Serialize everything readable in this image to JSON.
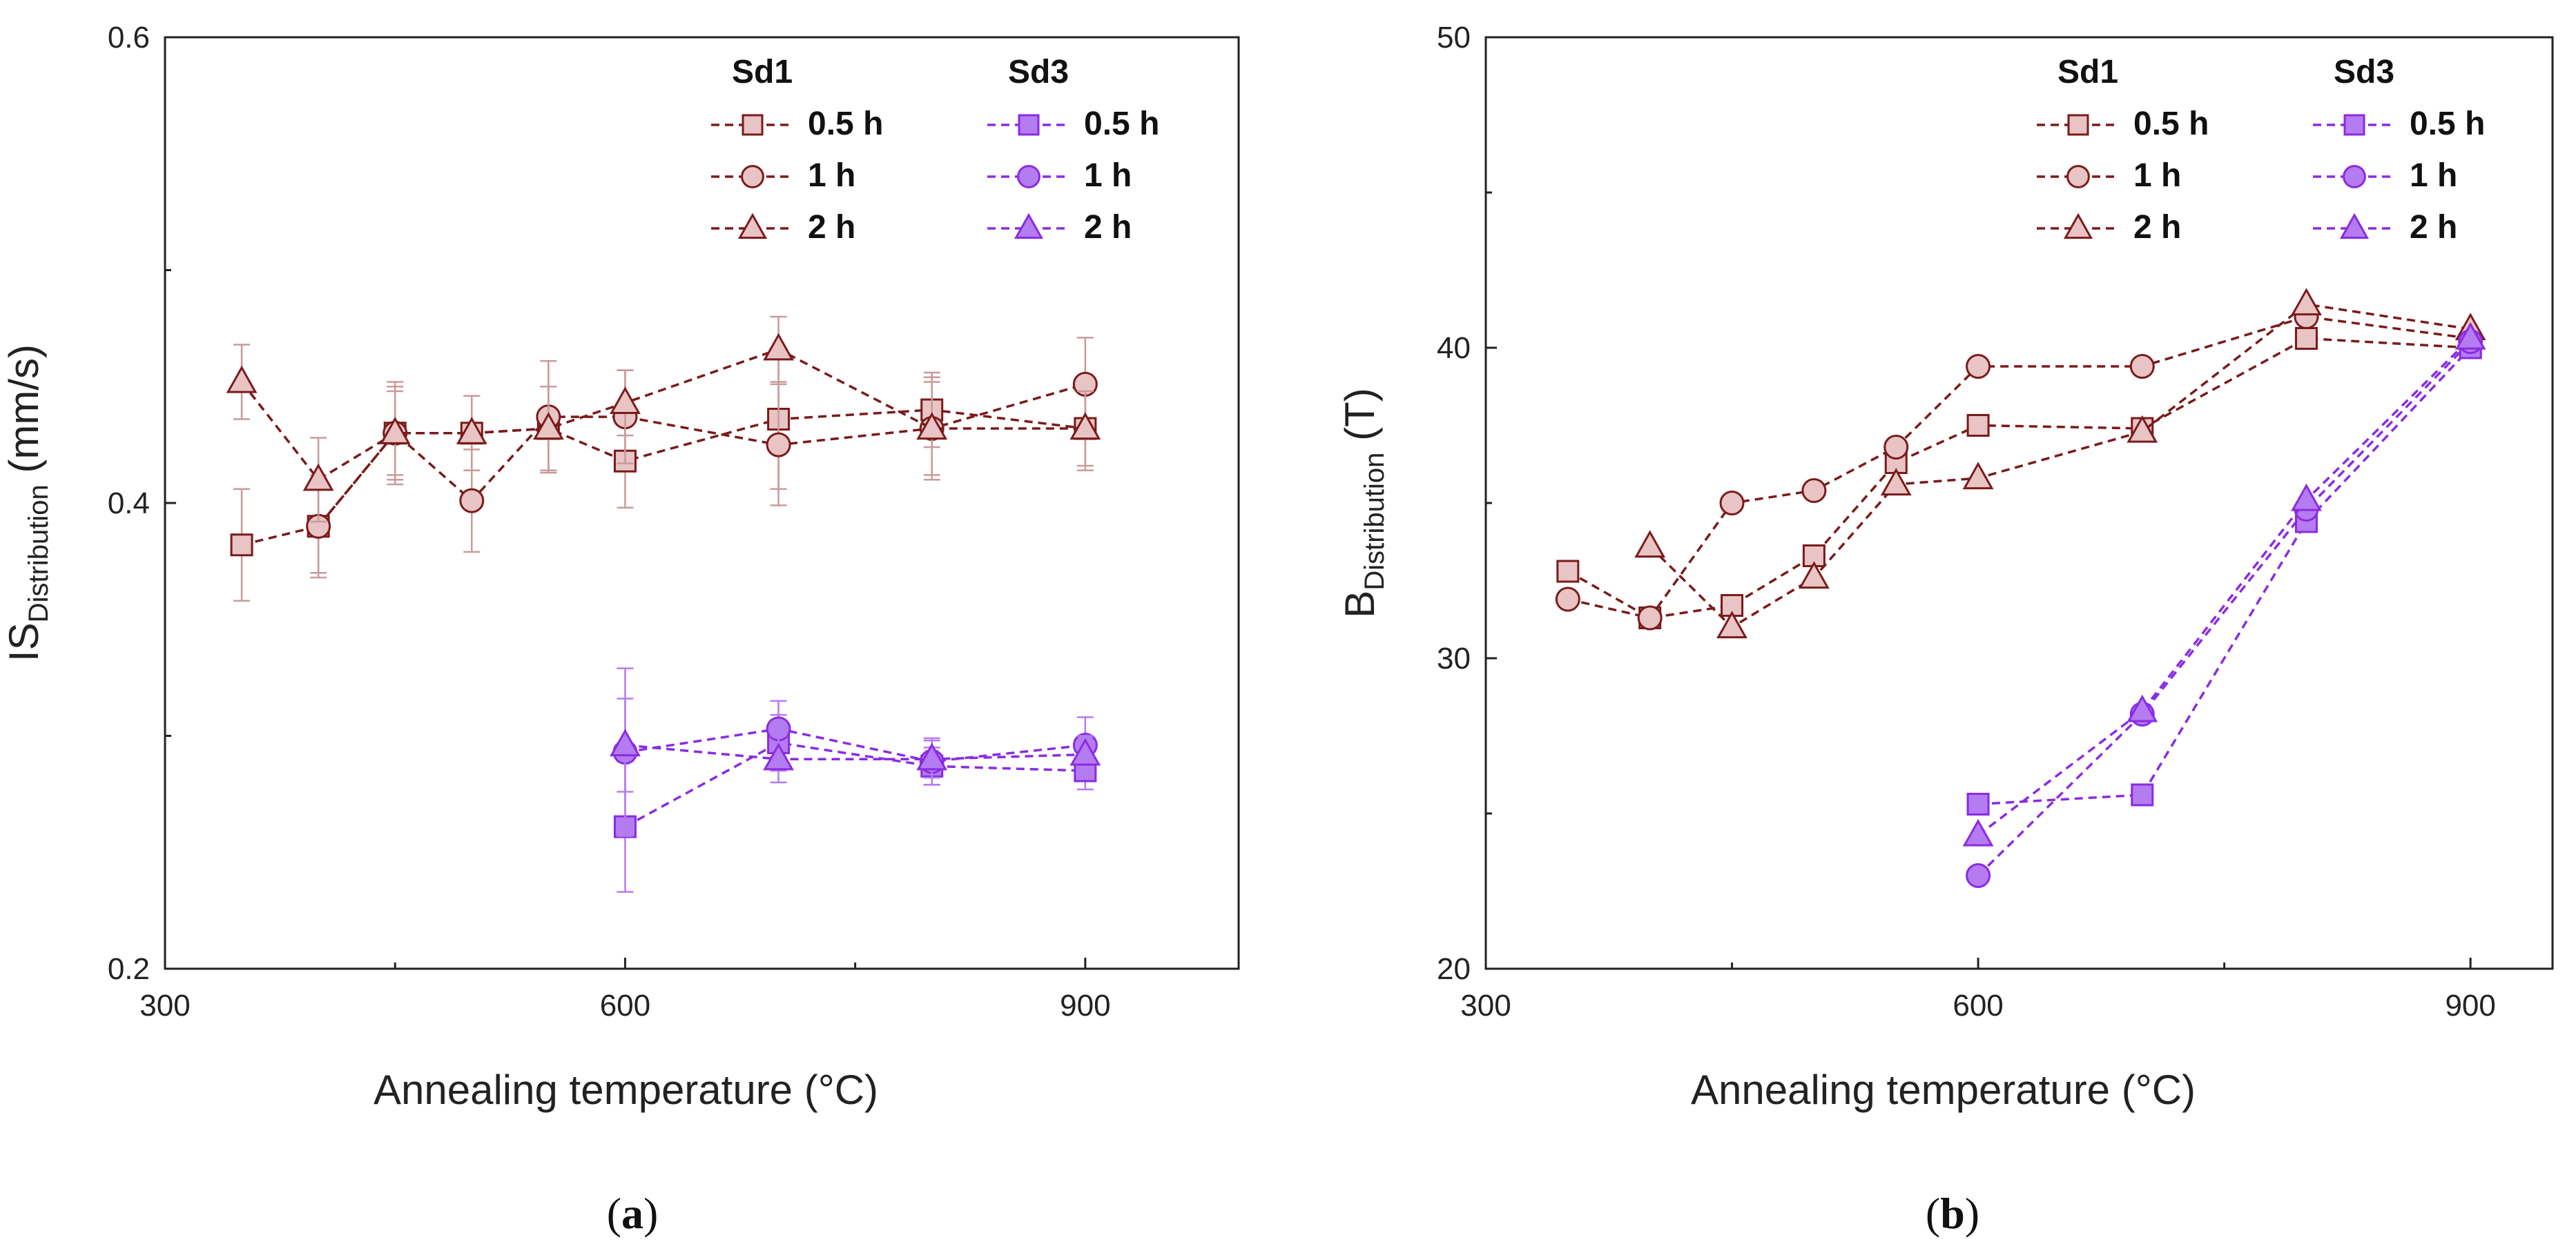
{
  "chart_data": [
    {
      "type": "line",
      "panel_label": "a",
      "xlabel": "Annealing temperature (°C)",
      "ylabel_main": "IS",
      "ylabel_sub": "Distribution",
      "ylabel_unit": " (mm/s)",
      "xlim": [
        300,
        1000
      ],
      "ylim": [
        0.2,
        0.6
      ],
      "xticks": [
        300,
        600,
        900
      ],
      "yticks": [
        0.2,
        0.4,
        0.6
      ],
      "ytick_labels": [
        "0.2",
        "0.4",
        "0.6"
      ],
      "legend": {
        "group1": "Sd1",
        "group2": "Sd3",
        "labels": [
          "0.5 h",
          "1 h",
          "2 h"
        ]
      },
      "series": [
        {
          "name": "Sd1 0.5 h",
          "group": "Sd1",
          "marker": "square",
          "x": [
            350,
            400,
            450,
            500,
            550,
            600,
            700,
            800,
            900
          ],
          "y": [
            0.382,
            0.39,
            0.43,
            0.43,
            0.432,
            0.418,
            0.436,
            0.44,
            0.432
          ],
          "err": [
            0.024,
            0.022,
            0.02,
            0.016,
            0.018,
            0.02,
            0.03,
            0.016,
            0.018
          ]
        },
        {
          "name": "Sd1 1 h",
          "group": "Sd1",
          "marker": "circle",
          "x": [
            400,
            450,
            500,
            550,
            600,
            700,
            800,
            900
          ],
          "y": [
            0.39,
            0.43,
            0.401,
            0.437,
            0.437,
            0.425,
            0.432,
            0.451
          ],
          "err": [
            0.02,
            0.018,
            0.022,
            0.024,
            0.02,
            0.026,
            0.022,
            0.02
          ]
        },
        {
          "name": "Sd1 2 h",
          "group": "Sd1",
          "marker": "triangle",
          "x": [
            350,
            400,
            450,
            500,
            550,
            600,
            700,
            800,
            900
          ],
          "y": [
            0.452,
            0.41,
            0.43,
            0.43,
            0.432,
            0.443,
            0.466,
            0.432,
            0.432
          ],
          "err": [
            0.016,
            0.018,
            0.022,
            0.016,
            0.018,
            0.014,
            0.014,
            0.02,
            0.016
          ]
        },
        {
          "name": "Sd3 0.5 h",
          "group": "Sd3",
          "marker": "square",
          "x": [
            600,
            700,
            800,
            900
          ],
          "y": [
            0.261,
            0.297,
            0.287,
            0.285
          ],
          "err": [
            0.028,
            0.012,
            0.008,
            0.008
          ]
        },
        {
          "name": "Sd3 1 h",
          "group": "Sd3",
          "marker": "circle",
          "x": [
            600,
            700,
            800,
            900
          ],
          "y": [
            0.293,
            0.303,
            0.289,
            0.296
          ],
          "err": [
            0.036,
            0.012,
            0.01,
            0.012
          ]
        },
        {
          "name": "Sd3 2 h",
          "group": "Sd3",
          "marker": "triangle",
          "x": [
            600,
            700,
            800,
            900
          ],
          "y": [
            0.296,
            0.29,
            0.29,
            0.292
          ],
          "err": [
            0.02,
            0.01,
            0.008,
            0.008
          ]
        }
      ]
    },
    {
      "type": "line",
      "panel_label": "b",
      "xlabel": "Annealing temperature (°C)",
      "ylabel_main": "B",
      "ylabel_sub": "Distribution",
      "ylabel_unit": " (T)",
      "xlim": [
        300,
        950
      ],
      "ylim": [
        20,
        50
      ],
      "xticks": [
        300,
        600,
        900
      ],
      "yticks": [
        20,
        30,
        40,
        50
      ],
      "ytick_labels": [
        "20",
        "30",
        "40",
        "50"
      ],
      "legend": {
        "group1": "Sd1",
        "group2": "Sd3",
        "labels": [
          "0.5 h",
          "1 h",
          "2 h"
        ]
      },
      "series": [
        {
          "name": "Sd1 0.5 h",
          "group": "Sd1",
          "marker": "square",
          "x": [
            350,
            400,
            450,
            500,
            550,
            600,
            700,
            800,
            900
          ],
          "y": [
            32.8,
            31.3,
            31.7,
            33.3,
            36.3,
            37.5,
            37.4,
            40.3,
            40.0
          ]
        },
        {
          "name": "Sd1 1 h",
          "group": "Sd1",
          "marker": "circle",
          "x": [
            350,
            400,
            450,
            500,
            550,
            600,
            700,
            800,
            900
          ],
          "y": [
            31.9,
            31.3,
            35.0,
            35.4,
            36.8,
            39.4,
            39.4,
            41.0,
            40.3
          ]
        },
        {
          "name": "Sd1 2 h",
          "group": "Sd1",
          "marker": "triangle",
          "x": [
            400,
            450,
            500,
            550,
            600,
            700,
            800,
            900
          ],
          "y": [
            33.6,
            31.0,
            32.6,
            35.6,
            35.8,
            37.3,
            41.4,
            40.6
          ]
        },
        {
          "name": "Sd3 0.5 h",
          "group": "Sd3",
          "marker": "square",
          "x": [
            600,
            700,
            800,
            900
          ],
          "y": [
            25.3,
            25.6,
            34.4,
            40.0
          ]
        },
        {
          "name": "Sd3 1 h",
          "group": "Sd3",
          "marker": "circle",
          "x": [
            600,
            700,
            800,
            900
          ],
          "y": [
            23.0,
            28.2,
            34.8,
            40.2
          ]
        },
        {
          "name": "Sd3 2 h",
          "group": "Sd3",
          "marker": "triangle",
          "x": [
            600,
            700,
            800,
            900
          ],
          "y": [
            24.3,
            28.3,
            35.1,
            40.3
          ]
        }
      ]
    }
  ],
  "colors": {
    "sd1_line": "#7a1a1a",
    "sd1_fill": "#e8c4c4",
    "sd1_fill_grey": "#dcc4c0",
    "sd1_err": "#c99a9a",
    "sd3_line": "#8a2be2",
    "sd3_fill": "#b57bf0",
    "axis": "#222222"
  }
}
